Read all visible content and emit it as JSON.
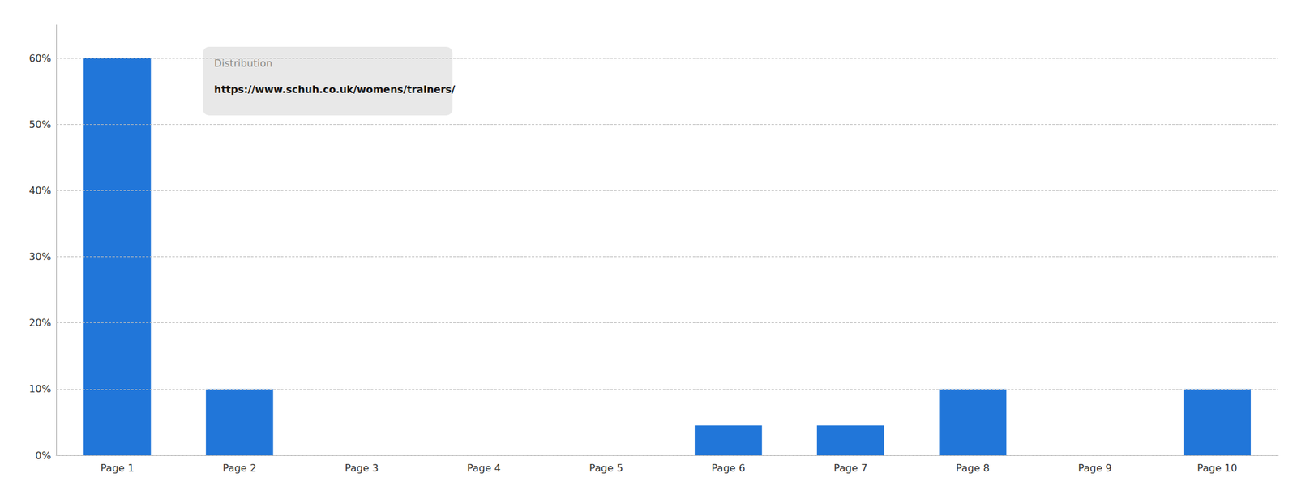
{
  "chart_data": {
    "type": "bar",
    "categories": [
      "Page 1",
      "Page 2",
      "Page 3",
      "Page 4",
      "Page 5",
      "Page 6",
      "Page 7",
      "Page 8",
      "Page 9",
      "Page 10"
    ],
    "values": [
      60,
      10,
      0,
      0,
      0,
      4.5,
      4.5,
      10,
      0,
      10
    ],
    "color": "#2176d9",
    "ylim": [
      0,
      65
    ],
    "yticks": [
      {
        "value": 0,
        "label": "0%"
      },
      {
        "value": 10,
        "label": "10%"
      },
      {
        "value": 20,
        "label": "20%"
      },
      {
        "value": 30,
        "label": "30%"
      },
      {
        "value": 40,
        "label": "40%"
      },
      {
        "value": 50,
        "label": "50%"
      },
      {
        "value": 60,
        "label": "60%"
      }
    ],
    "grid": true,
    "annotations": [
      "Distribution",
      "https://www.schuh.co.uk/womens/trainers/"
    ]
  }
}
